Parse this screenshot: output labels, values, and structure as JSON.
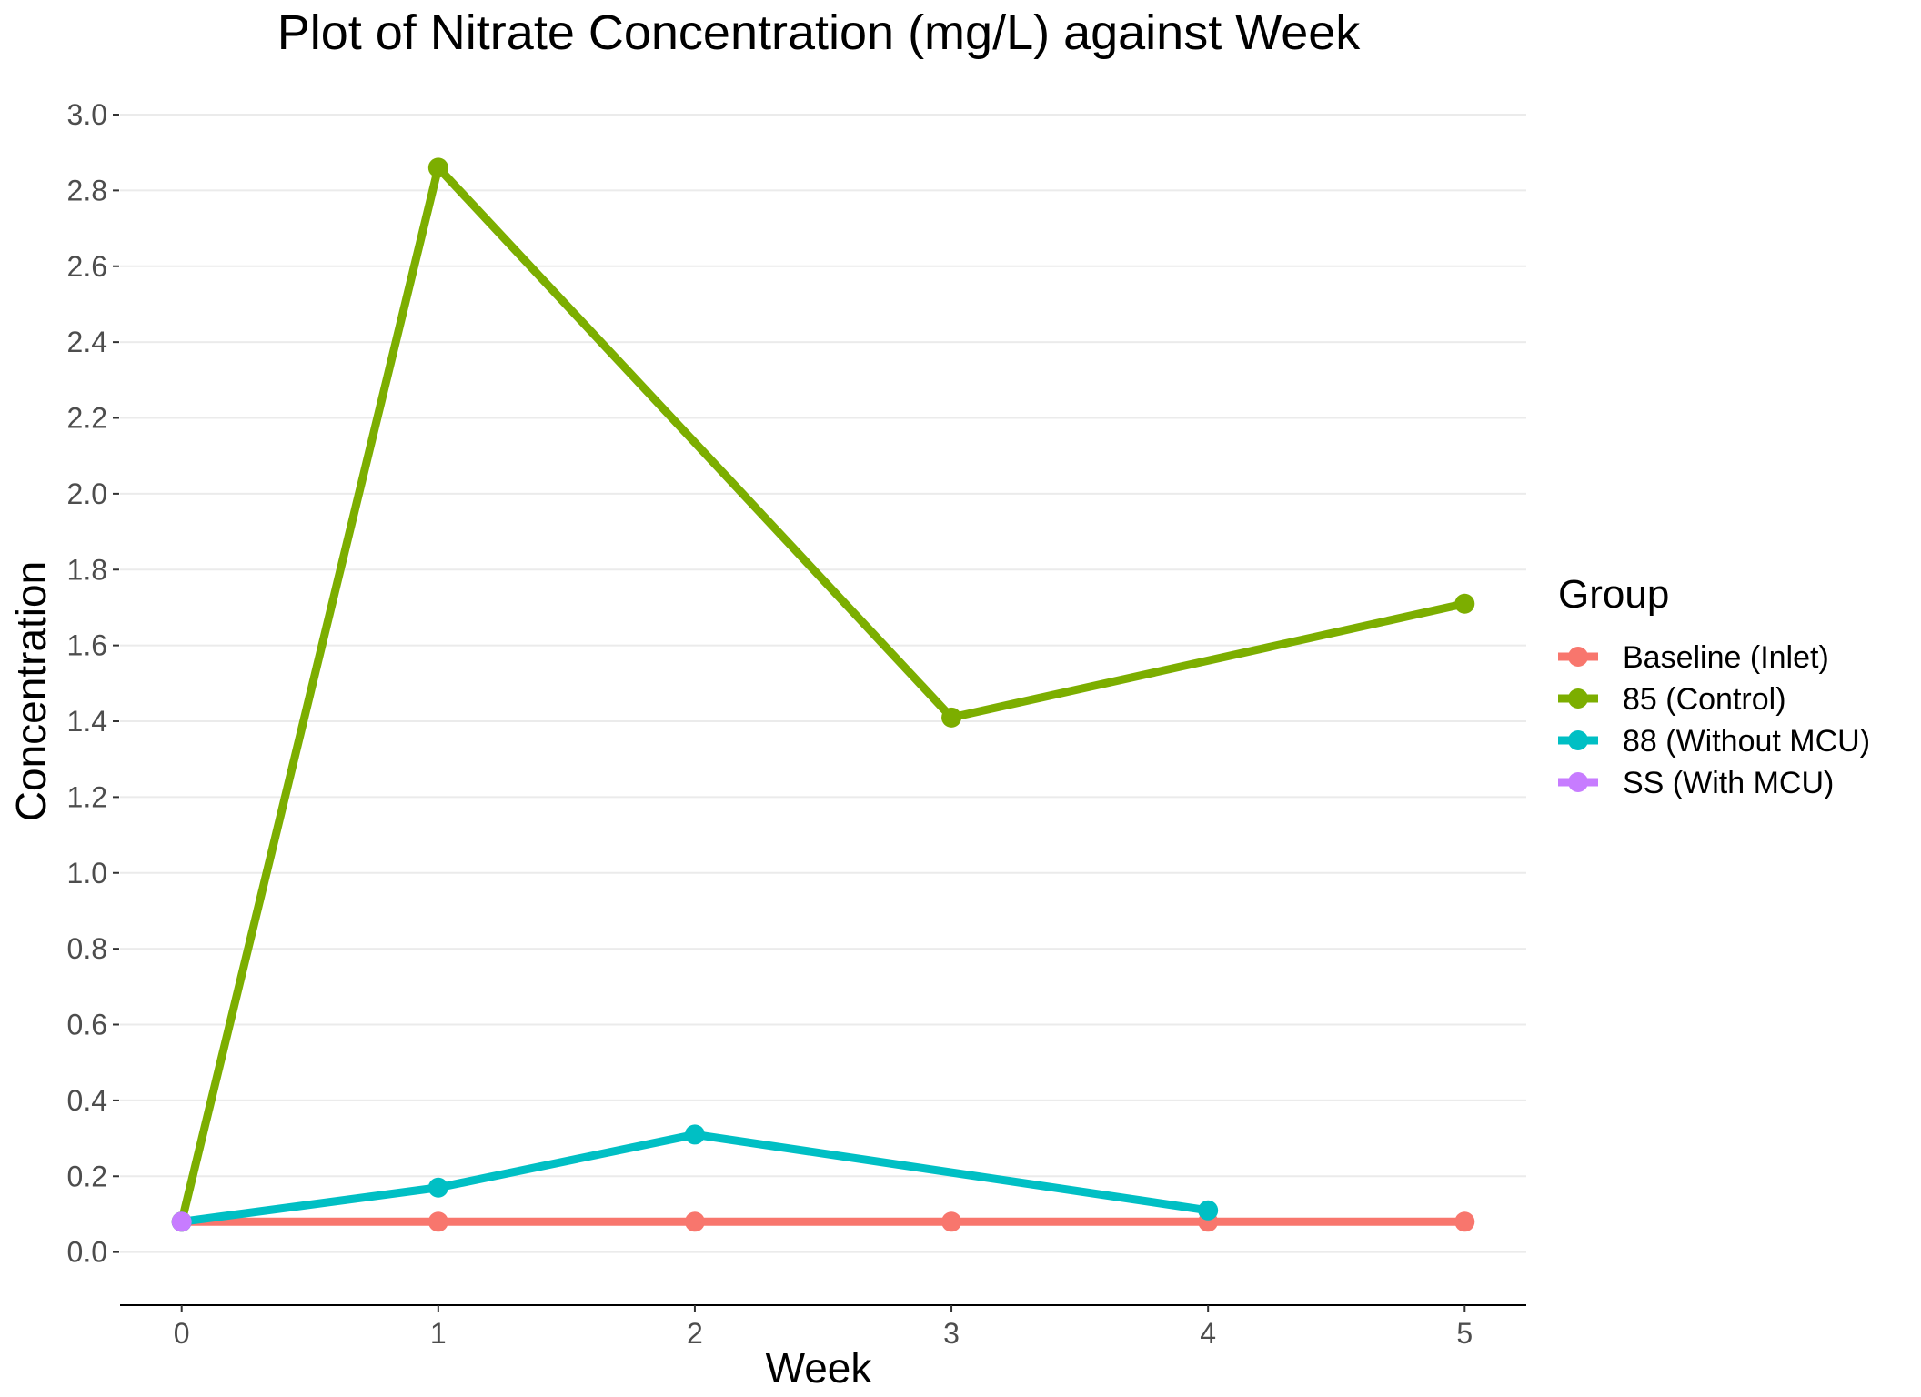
{
  "chart_data": {
    "type": "line",
    "title": "Plot of Nitrate Concentration (mg/L) against Week",
    "xlabel": "Week",
    "ylabel": "Concentration",
    "x": [
      0,
      1,
      2,
      3,
      4,
      5
    ],
    "x_ticks": [
      "0",
      "1",
      "2",
      "3",
      "4",
      "5"
    ],
    "xlim": [
      -0.24,
      5.24
    ],
    "ylim": [
      -0.14,
      3.0
    ],
    "y_ticks": [
      "0.0",
      "0.2",
      "0.4",
      "0.6",
      "0.8",
      "1.0",
      "1.2",
      "1.4",
      "1.6",
      "1.8",
      "2.0",
      "2.2",
      "2.4",
      "2.6",
      "2.8",
      "3.0"
    ],
    "grid": true,
    "legend_title": "Group",
    "legend_position": "right",
    "series": [
      {
        "name": "Baseline (Inlet)",
        "color": "#F8766D",
        "x": [
          0,
          1,
          2,
          3,
          4,
          5
        ],
        "values": [
          0.08,
          0.08,
          0.08,
          0.08,
          0.08,
          0.08
        ]
      },
      {
        "name": "85 (Control)",
        "color": "#7CAE00",
        "x": [
          0,
          1,
          3,
          5
        ],
        "values": [
          0.08,
          2.86,
          1.41,
          1.71
        ]
      },
      {
        "name": "88 (Without MCU)",
        "color": "#00BFC4",
        "x": [
          0,
          1,
          2,
          4
        ],
        "values": [
          0.08,
          0.17,
          0.31,
          0.11
        ]
      },
      {
        "name": "SS (With MCU)",
        "color": "#C77CFF",
        "x": [
          0
        ],
        "values": [
          0.08
        ]
      }
    ]
  }
}
